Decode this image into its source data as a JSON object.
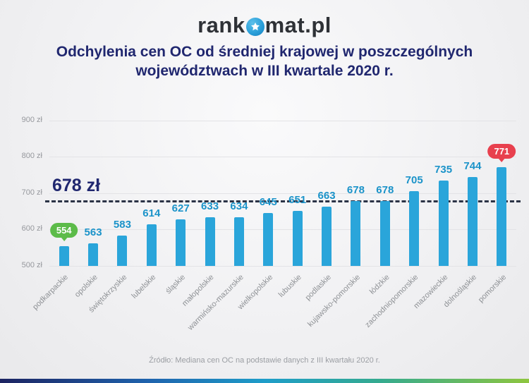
{
  "logo": {
    "prefix": "rank",
    "suffix": "mat.pl",
    "icon": "star-circle-icon"
  },
  "title": {
    "line1": "Odchylenia cen OC od średniej krajowej w poszczególnych",
    "line2": "województwach w III kwartale 2020 r."
  },
  "footer": {
    "source": "Źródło: Mediana cen OC na podstawie danych z III kwartału 2020 r."
  },
  "chart_data": {
    "type": "bar",
    "title": "Odchylenia cen OC od średniej krajowej w poszczególnych województwach w III kwartale 2020 r.",
    "unit": "zł",
    "categories": [
      "podkarpackie",
      "opolskie",
      "świętokrzyskie",
      "lubelskie",
      "śląskie",
      "małopolskie",
      "warmińsko-mazurskie",
      "wielkopolskie",
      "lubuskie",
      "podlaskie",
      "kujawsko-pomorskie",
      "łódzkie",
      "zachodniopomorskie",
      "mazowieckie",
      "dolnośląskie",
      "pomorskie"
    ],
    "values": [
      554,
      563,
      583,
      614,
      627,
      633,
      634,
      645,
      651,
      663,
      678,
      678,
      705,
      735,
      744,
      771
    ],
    "average": {
      "value": 678,
      "label": "678 zł"
    },
    "highlight_min": {
      "category": "podkarpackie",
      "value": 554,
      "badge_color": "#5cbb49"
    },
    "highlight_max": {
      "category": "pomorskie",
      "value": 771,
      "badge_color": "#e8404e"
    },
    "y_ticks": [
      500,
      600,
      700,
      800,
      900
    ],
    "y_tick_suffix": " zł",
    "ylim": [
      500,
      940
    ],
    "grid": true,
    "legend": false,
    "bar_color": "#2aa5da",
    "value_label_color": "#1b93c9",
    "average_line_color": "#2b3346"
  }
}
